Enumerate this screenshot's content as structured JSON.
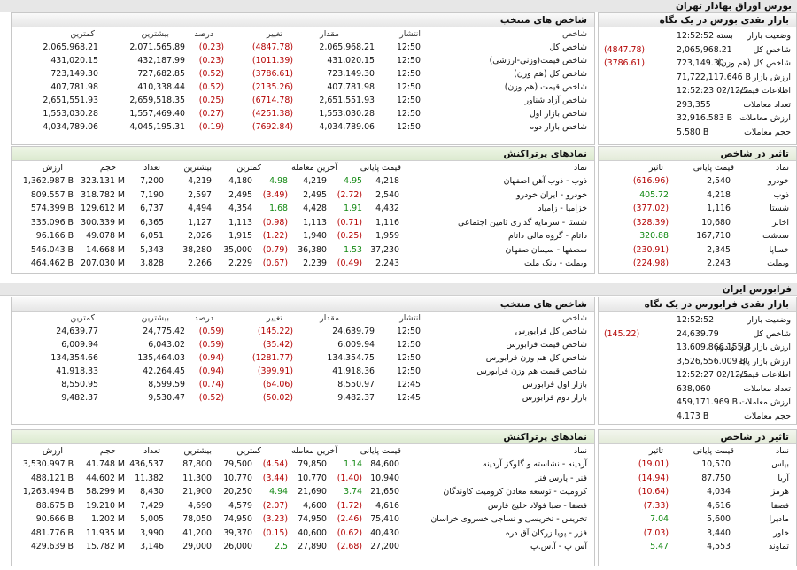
{
  "boors": {
    "title": "بورس اوراق بهادار تهران",
    "snapshot": {
      "title": "بازار نقدی بورس در یک نگاه",
      "rows": [
        {
          "label": "وضعیت بازار",
          "value": "بسته 12:52:52",
          "color": ""
        },
        {
          "label": "شاخص کل",
          "value": "2,065,968.21",
          "change": "(4847.78)",
          "color": "red"
        },
        {
          "label": "شاخص کل (هم وزن)",
          "value": "723,149.30",
          "change": "(3786.61)",
          "color": "red"
        },
        {
          "label": "ارزش بازار",
          "value": "71,722,117.646 B",
          "color": ""
        },
        {
          "label": "اطلاعات قیمت",
          "value": "12:52:23 02/12/5",
          "color": ""
        },
        {
          "label": "تعداد معاملات",
          "value": "293,355",
          "color": ""
        },
        {
          "label": "ارزش معاملات",
          "value": "32,916.583 B",
          "color": ""
        },
        {
          "label": "حجم معاملات",
          "value": "5.580 B",
          "color": ""
        }
      ]
    },
    "indices": {
      "title": "شاخص های منتخب",
      "headers": [
        "شاخص",
        "انتشار",
        "مقدار",
        "تغییر",
        "درصد",
        "بیشترین",
        "کمترین"
      ],
      "rows": [
        {
          "name": "شاخص کل",
          "time": "12:50",
          "value": "2,065,968.21",
          "change": "(4847.78)",
          "pct": "(0.23)",
          "max": "2,071,565.89",
          "min": "2,065,968.21"
        },
        {
          "name": "شاخص قیمت(وزنی-ارزشی)",
          "time": "12:50",
          "value": "431,020.15",
          "change": "(1011.39)",
          "pct": "(0.23)",
          "max": "432,187.99",
          "min": "431,020.15"
        },
        {
          "name": "شاخص کل (هم وزن)",
          "time": "12:50",
          "value": "723,149.30",
          "change": "(3786.61)",
          "pct": "(0.52)",
          "max": "727,682.85",
          "min": "723,149.30"
        },
        {
          "name": "شاخص قیمت (هم وزن)",
          "time": "12:50",
          "value": "407,781.98",
          "change": "(2135.26)",
          "pct": "(0.52)",
          "max": "410,338.44",
          "min": "407,781.98"
        },
        {
          "name": "شاخص آزاد شناور",
          "time": "12:50",
          "value": "2,651,551.93",
          "change": "(6714.78)",
          "pct": "(0.25)",
          "max": "2,659,518.35",
          "min": "2,651,551.93"
        },
        {
          "name": "شاخص بازار اول",
          "time": "12:50",
          "value": "1,553,030.28",
          "change": "(4251.38)",
          "pct": "(0.27)",
          "max": "1,557,469.40",
          "min": "1,553,030.28"
        },
        {
          "name": "شاخص بازار دوم",
          "time": "12:50",
          "value": "4,034,789.06",
          "change": "(7692.84)",
          "pct": "(0.19)",
          "max": "4,045,195.31",
          "min": "4,034,789.06"
        }
      ]
    },
    "impact": {
      "title": "تاثیر در شاخص",
      "headers": [
        "نماد",
        "قیمت پایانی",
        "تاثیر"
      ],
      "rows": [
        {
          "sym": "خودرو",
          "price": "2,540",
          "impact": "(616.96)",
          "c": "red"
        },
        {
          "sym": "ذوب",
          "price": "4,218",
          "impact": "405.72",
          "c": "grn"
        },
        {
          "sym": "شستا",
          "price": "1,116",
          "impact": "(377.02)",
          "c": "red"
        },
        {
          "sym": "اخابر",
          "price": "10,680",
          "impact": "(328.39)",
          "c": "red"
        },
        {
          "sym": "سدشت",
          "price": "167,710",
          "impact": "320.88",
          "c": "grn"
        },
        {
          "sym": "خساپا",
          "price": "2,345",
          "impact": "(230.91)",
          "c": "red"
        },
        {
          "sym": "وبملت",
          "price": "2,243",
          "impact": "(224.98)",
          "c": "red"
        }
      ]
    },
    "active": {
      "title": "نمادهای پرتراکنش",
      "headers": [
        "نماد",
        "قیمت پایانی",
        "آخرین معامله",
        "کمترین",
        "بیشترین",
        "تعداد",
        "حجم",
        "ارزش"
      ],
      "rows": [
        {
          "sym": "ذوب - ذوب آهن اصفهان",
          "close": "4,218",
          "closeChg": "4.95",
          "cc": "grn",
          "last": "4,219",
          "lastChg": "4.98",
          "lc": "grn",
          "min": "4,180",
          "max": "4,219",
          "count": "7,200",
          "vol": "323.131 M",
          "val": "1,362.987 B"
        },
        {
          "sym": "خودرو - ایران خودرو",
          "close": "2,540",
          "closeChg": "(2.72)",
          "cc": "red",
          "last": "2,495",
          "lastChg": "(3.49)",
          "lc": "red",
          "min": "2,495",
          "max": "2,597",
          "count": "7,190",
          "vol": "318.782 M",
          "val": "809.557 B"
        },
        {
          "sym": "خزامیا - زامیاد",
          "close": "4,432",
          "closeChg": "1.91",
          "cc": "grn",
          "last": "4,428",
          "lastChg": "1.68",
          "lc": "grn",
          "min": "4,354",
          "max": "4,494",
          "count": "6,737",
          "vol": "129.612 M",
          "val": "574.399 B"
        },
        {
          "sym": "شستا - سرمایه گذاری تامین اجتماعی",
          "close": "1,116",
          "closeChg": "(0.71)",
          "cc": "red",
          "last": "1,113",
          "lastChg": "(0.98)",
          "lc": "red",
          "min": "1,113",
          "max": "1,127",
          "count": "6,365",
          "vol": "300.339 M",
          "val": "335.096 B"
        },
        {
          "sym": "داتام - گروه مالی داتام",
          "close": "1,959",
          "closeChg": "(0.25)",
          "cc": "red",
          "last": "1,940",
          "lastChg": "(1.22)",
          "lc": "red",
          "min": "1,915",
          "max": "2,026",
          "count": "6,051",
          "vol": "49.078 M",
          "val": "96.166 B"
        },
        {
          "sym": "سصفها - سیمان‌اصفهان",
          "close": "37,230",
          "closeChg": "1.53",
          "cc": "grn",
          "last": "36,380",
          "lastChg": "(0.79)",
          "lc": "red",
          "min": "35,000",
          "max": "38,280",
          "count": "5,343",
          "vol": "14.668 M",
          "val": "546.043 B"
        },
        {
          "sym": "وبملت - بانک ملت",
          "close": "2,243",
          "closeChg": "(0.49)",
          "cc": "red",
          "last": "2,239",
          "lastChg": "(0.67)",
          "lc": "red",
          "min": "2,229",
          "max": "2,266",
          "count": "3,828",
          "vol": "207.030 M",
          "val": "464.462 B"
        }
      ]
    }
  },
  "farabourse": {
    "title": "فرابورس ایران",
    "snapshot": {
      "title": "بازار نقدی فرابورس در یک نگاه",
      "rows": [
        {
          "label": "وضعیت بازار",
          "value": "12:52:52",
          "color": ""
        },
        {
          "label": "شاخص کل",
          "value": "24,639.79",
          "change": "(145.22)",
          "color": "red"
        },
        {
          "label": "ارزش بازار اول و دوم",
          "value": "13,609,866.155 B",
          "color": ""
        },
        {
          "label": "ارزش بازار پایه",
          "value": "3,526,556.009 B",
          "color": ""
        },
        {
          "label": "اطلاعات قیمت",
          "value": "12:52:27 02/12/5",
          "color": ""
        },
        {
          "label": "تعداد معاملات",
          "value": "638,060",
          "color": ""
        },
        {
          "label": "ارزش معاملات",
          "value": "459,171.969 B",
          "color": ""
        },
        {
          "label": "حجم معاملات",
          "value": "4.173 B",
          "color": ""
        }
      ]
    },
    "indices": {
      "title": "شاخص های منتخب",
      "headers": [
        "شاخص",
        "انتشار",
        "مقدار",
        "تغییر",
        "درصد",
        "بیشترین",
        "کمترین"
      ],
      "rows": [
        {
          "name": "شاخص کل فرابورس",
          "time": "12:50",
          "value": "24,639.79",
          "change": "(145.22)",
          "pct": "(0.59)",
          "max": "24,775.42",
          "min": "24,639.77"
        },
        {
          "name": "شاخص قیمت فرابورس",
          "time": "12:50",
          "value": "6,009.94",
          "change": "(35.42)",
          "pct": "(0.59)",
          "max": "6,043.02",
          "min": "6,009.94"
        },
        {
          "name": "شاخص کل هم وزن فرابورس",
          "time": "12:50",
          "value": "134,354.75",
          "change": "(1281.77)",
          "pct": "(0.94)",
          "max": "135,464.03",
          "min": "134,354.66"
        },
        {
          "name": "شاخص قیمت هم وزن فرابورس",
          "time": "12:50",
          "value": "41,918.36",
          "change": "(399.91)",
          "pct": "(0.94)",
          "max": "42,264.45",
          "min": "41,918.33"
        },
        {
          "name": "بازار اول فرابورس",
          "time": "12:45",
          "value": "8,550.97",
          "change": "(64.06)",
          "pct": "(0.74)",
          "max": "8,599.59",
          "min": "8,550.95"
        },
        {
          "name": "بازار دوم فرابورس",
          "time": "12:45",
          "value": "9,482.37",
          "change": "(50.02)",
          "pct": "(0.52)",
          "max": "9,530.47",
          "min": "9,482.37"
        }
      ]
    },
    "impact": {
      "title": "تاثیر در شاخص",
      "headers": [
        "نماد",
        "قیمت پایانی",
        "تاثیر"
      ],
      "rows": [
        {
          "sym": "بپاس",
          "price": "10,570",
          "impact": "(19.01)",
          "c": "red"
        },
        {
          "sym": "آریا",
          "price": "87,750",
          "impact": "(14.94)",
          "c": "red"
        },
        {
          "sym": "هرمز",
          "price": "4,034",
          "impact": "(10.64)",
          "c": "red"
        },
        {
          "sym": "فصفا",
          "price": "4,616",
          "impact": "(7.33)",
          "c": "red"
        },
        {
          "sym": "مادیرا",
          "price": "5,600",
          "impact": "7.04",
          "c": "grn"
        },
        {
          "sym": "خاور",
          "price": "3,440",
          "impact": "(7.03)",
          "c": "red"
        },
        {
          "sym": "تماوند",
          "price": "4,553",
          "impact": "5.47",
          "c": "grn"
        }
      ]
    },
    "active": {
      "title": "نمادهای پرتراکنش",
      "headers": [
        "نماد",
        "قیمت پایانی",
        "آخرین معامله",
        "کمترین",
        "بیشترین",
        "تعداد",
        "حجم",
        "ارزش"
      ],
      "rows": [
        {
          "sym": "آردینه - نشاسته و گلوکز آردینه",
          "close": "84,600",
          "closeChg": "1.14",
          "cc": "grn",
          "last": "79,850",
          "lastChg": "(4.54)",
          "lc": "red",
          "min": "79,500",
          "max": "87,800",
          "count": "436,537",
          "vol": "41.748 M",
          "val": "3,530.997 B"
        },
        {
          "sym": "فنر - پارس فنر",
          "close": "10,940",
          "closeChg": "(1.40)",
          "cc": "red",
          "last": "10,770",
          "lastChg": "(3.44)",
          "lc": "red",
          "min": "10,770",
          "max": "11,300",
          "count": "11,382",
          "vol": "44.602 M",
          "val": "488.121 B"
        },
        {
          "sym": "کرومیت - توسعه معادن کرومیت کاوندگان",
          "close": "21,650",
          "closeChg": "3.74",
          "cc": "grn",
          "last": "21,690",
          "lastChg": "4.94",
          "lc": "grn",
          "min": "20,250",
          "max": "21,900",
          "count": "8,430",
          "vol": "58.299 M",
          "val": "1,263.494 B"
        },
        {
          "sym": "فصفا - صبا فولاد خلیج فارس",
          "close": "4,616",
          "closeChg": "(1.72)",
          "cc": "red",
          "last": "4,600",
          "lastChg": "(2.07)",
          "lc": "red",
          "min": "4,579",
          "max": "4,690",
          "count": "7,429",
          "vol": "19.210 M",
          "val": "88.675 B"
        },
        {
          "sym": "تخریس - تخریسی و نساجی خسروی خراسان",
          "close": "75,410",
          "closeChg": "(2.46)",
          "cc": "red",
          "last": "74,950",
          "lastChg": "(3.23)",
          "lc": "red",
          "min": "74,950",
          "max": "78,050",
          "count": "5,005",
          "vol": "1.202 M",
          "val": "90.666 B"
        },
        {
          "sym": "فزر - پویا زرکان آق دره",
          "close": "40,430",
          "closeChg": "(0.62)",
          "cc": "red",
          "last": "40,600",
          "lastChg": "(0.15)",
          "lc": "red",
          "min": "39,370",
          "max": "41,200",
          "count": "3,990",
          "vol": "11.935 M",
          "val": "481.776 B"
        },
        {
          "sym": "آس پ - آ.س.پ",
          "close": "27,200",
          "closeChg": "(2.68)",
          "cc": "red",
          "last": "27,890",
          "lastChg": "2.5",
          "lc": "grn",
          "min": "26,000",
          "max": "29,000",
          "count": "3,146",
          "vol": "15.782 M",
          "val": "429.639 B"
        }
      ]
    }
  }
}
